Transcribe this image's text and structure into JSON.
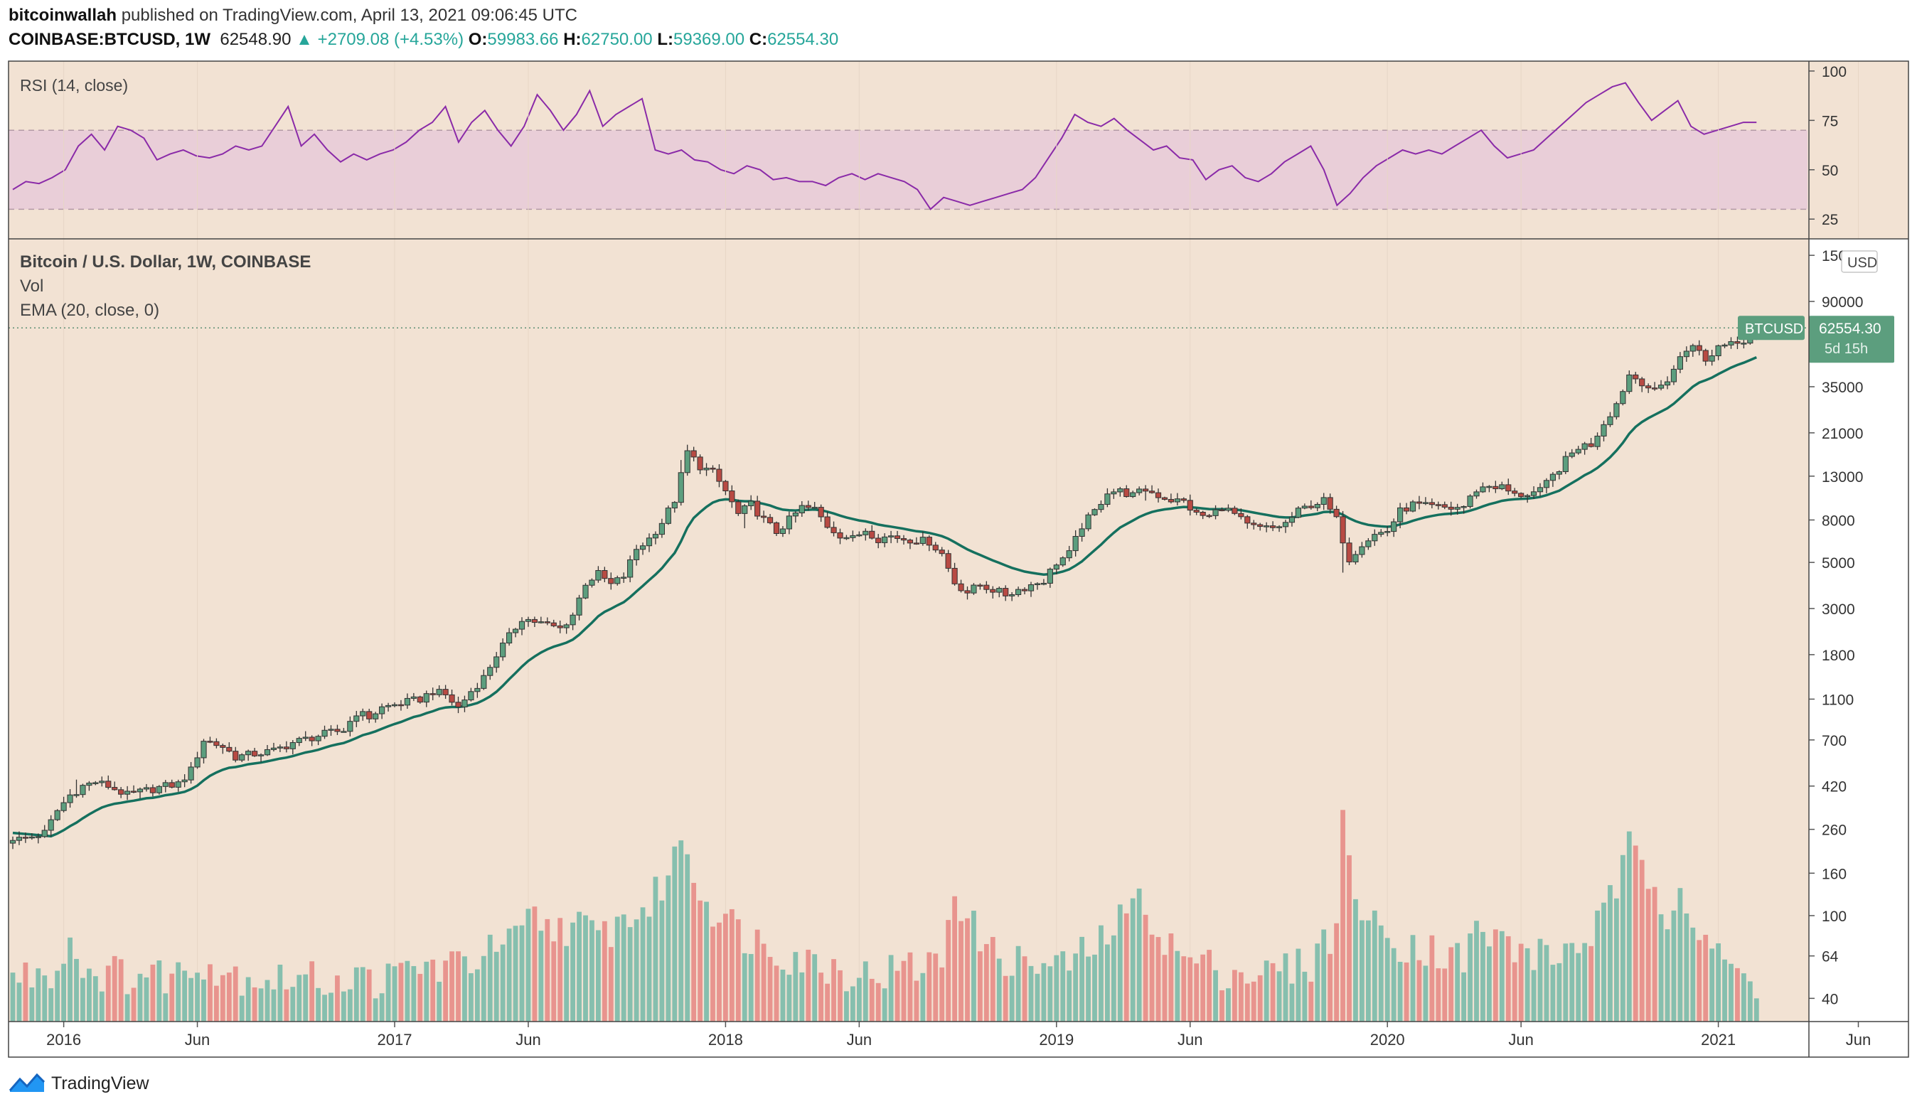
{
  "header": {
    "author": "bitcoinwallah",
    "published": "published on TradingView.com, April 13, 2021 09:06:45 UTC",
    "symbol": "COINBASE:BTCUSD, 1W",
    "last": "62548.90",
    "change": "+2709.08 (+4.53%)",
    "open_label": "O:",
    "open": "59983.66",
    "high_label": "H:",
    "high": "62750.00",
    "low_label": "L:",
    "low": "59369.00",
    "close_label": "C:",
    "close": "62554.30"
  },
  "colors": {
    "background": "#f2e2d3",
    "up": "#5c9e7e",
    "down": "#b84a43",
    "vol_up": "#86bfae",
    "vol_down": "#e8948e",
    "ema": "#15705e",
    "rsi_line": "#8a2aa8",
    "rsi_band": "#e8cad8",
    "label_bg": "#5c9e7e"
  },
  "footer": {
    "brand": "TradingView"
  },
  "chart_data": [
    {
      "type": "line",
      "title": "RSI (14, close)",
      "ylim": [
        15,
        105
      ],
      "yticks": [
        100,
        75,
        50,
        25
      ],
      "band": [
        30,
        70
      ],
      "series": [
        {
          "name": "RSI",
          "values": [
            40,
            44,
            43,
            46,
            50,
            62,
            68,
            60,
            72,
            70,
            66,
            55,
            58,
            60,
            57,
            56,
            58,
            62,
            60,
            62,
            72,
            82,
            62,
            68,
            60,
            54,
            58,
            55,
            58,
            60,
            64,
            70,
            74,
            82,
            64,
            74,
            80,
            70,
            62,
            72,
            88,
            80,
            70,
            78,
            90,
            72,
            78,
            82,
            86,
            60,
            58,
            60,
            55,
            54,
            50,
            48,
            52,
            50,
            45,
            46,
            44,
            44,
            42,
            46,
            48,
            45,
            48,
            46,
            44,
            40,
            30,
            36,
            34,
            32,
            34,
            36,
            38,
            40,
            46,
            56,
            66,
            78,
            74,
            72,
            76,
            70,
            65,
            60,
            62,
            56,
            55,
            45,
            50,
            52,
            46,
            44,
            48,
            54,
            58,
            62,
            50,
            32,
            38,
            46,
            52,
            56,
            60,
            58,
            60,
            58,
            62,
            66,
            70,
            62,
            56,
            58,
            60,
            66,
            72,
            78,
            84,
            88,
            92,
            94,
            84,
            75,
            80,
            85,
            72,
            68,
            70,
            72,
            74,
            74
          ]
        }
      ]
    },
    {
      "type": "candlestick",
      "title": "Bitcoin / U.S. Dollar, 1W, COINBASE",
      "legend": [
        "Vol",
        "EMA (20, close, 0)"
      ],
      "scale": "log",
      "currency": "USD",
      "yticks": [
        "150000",
        "90000",
        "35000",
        "21000",
        "13000",
        "8000",
        "5000",
        "3000",
        "1800",
        "1100",
        "700",
        "420",
        "260",
        "160",
        "100",
        "64",
        "40"
      ],
      "xticks": [
        {
          "label": "2016",
          "week": 8
        },
        {
          "label": "Jun",
          "week": 29
        },
        {
          "label": "2017",
          "week": 60
        },
        {
          "label": "Jun",
          "week": 81
        },
        {
          "label": "2018",
          "week": 112
        },
        {
          "label": "Jun",
          "week": 133
        },
        {
          "label": "2019",
          "week": 164
        },
        {
          "label": "Jun",
          "week": 185
        },
        {
          "label": "2020",
          "week": 216
        },
        {
          "label": "Jun",
          "week": 237
        },
        {
          "label": "2021",
          "week": 268
        },
        {
          "label": "Jun",
          "week": 290
        }
      ],
      "ema_start": 250,
      "last_price": {
        "symbol": "BTCUSD",
        "price": "62554.30",
        "countdown": "5d 15h"
      },
      "close_anchors": [
        [
          0,
          230
        ],
        [
          3,
          240
        ],
        [
          5,
          250
        ],
        [
          7,
          320
        ],
        [
          9,
          380
        ],
        [
          11,
          420
        ],
        [
          13,
          440
        ],
        [
          15,
          420
        ],
        [
          18,
          380
        ],
        [
          21,
          400
        ],
        [
          24,
          420
        ],
        [
          26,
          430
        ],
        [
          28,
          500
        ],
        [
          30,
          700
        ],
        [
          33,
          650
        ],
        [
          35,
          580
        ],
        [
          38,
          600
        ],
        [
          41,
          620
        ],
        [
          44,
          680
        ],
        [
          47,
          720
        ],
        [
          50,
          760
        ],
        [
          52,
          780
        ],
        [
          54,
          950
        ],
        [
          56,
          900
        ],
        [
          58,
          1000
        ],
        [
          61,
          1050
        ],
        [
          64,
          1100
        ],
        [
          66,
          1200
        ],
        [
          68,
          1150
        ],
        [
          70,
          1000
        ],
        [
          72,
          1200
        ],
        [
          74,
          1400
        ],
        [
          76,
          1800
        ],
        [
          78,
          2200
        ],
        [
          80,
          2700
        ],
        [
          82,
          2600
        ],
        [
          84,
          2500
        ],
        [
          86,
          2400
        ],
        [
          88,
          2800
        ],
        [
          90,
          4000
        ],
        [
          92,
          4400
        ],
        [
          94,
          3900
        ],
        [
          96,
          4300
        ],
        [
          98,
          5800
        ],
        [
          100,
          6500
        ],
        [
          102,
          7800
        ],
        [
          104,
          10000
        ],
        [
          106,
          17000
        ],
        [
          108,
          14500
        ],
        [
          110,
          13500
        ],
        [
          112,
          11000
        ],
        [
          114,
          8500
        ],
        [
          116,
          9500
        ],
        [
          118,
          8000
        ],
        [
          120,
          7000
        ],
        [
          122,
          8000
        ],
        [
          124,
          9200
        ],
        [
          126,
          9000
        ],
        [
          128,
          7500
        ],
        [
          130,
          6800
        ],
        [
          132,
          6500
        ],
        [
          134,
          7200
        ],
        [
          136,
          6500
        ],
        [
          138,
          6700
        ],
        [
          140,
          6500
        ],
        [
          142,
          6400
        ],
        [
          144,
          6300
        ],
        [
          146,
          5500
        ],
        [
          148,
          4000
        ],
        [
          150,
          3600
        ],
        [
          152,
          3900
        ],
        [
          154,
          3700
        ],
        [
          156,
          3500
        ],
        [
          158,
          3700
        ],
        [
          160,
          3900
        ],
        [
          162,
          4100
        ],
        [
          164,
          5000
        ],
        [
          166,
          5500
        ],
        [
          168,
          7500
        ],
        [
          170,
          8800
        ],
        [
          172,
          11000
        ],
        [
          174,
          11000
        ],
        [
          176,
          10500
        ],
        [
          178,
          11200
        ],
        [
          180,
          10500
        ],
        [
          182,
          10000
        ],
        [
          184,
          9800
        ],
        [
          186,
          8500
        ],
        [
          188,
          8300
        ],
        [
          190,
          9300
        ],
        [
          192,
          8500
        ],
        [
          194,
          7500
        ],
        [
          196,
          7300
        ],
        [
          198,
          7300
        ],
        [
          200,
          7700
        ],
        [
          202,
          8800
        ],
        [
          204,
          9500
        ],
        [
          206,
          9900
        ],
        [
          208,
          8000
        ],
        [
          210,
          5200
        ],
        [
          212,
          6200
        ],
        [
          214,
          6800
        ],
        [
          216,
          7100
        ],
        [
          218,
          8800
        ],
        [
          220,
          9500
        ],
        [
          222,
          9300
        ],
        [
          224,
          9200
        ],
        [
          226,
          9100
        ],
        [
          228,
          9300
        ],
        [
          230,
          11200
        ],
        [
          232,
          11700
        ],
        [
          234,
          11500
        ],
        [
          236,
          10500
        ],
        [
          238,
          10700
        ],
        [
          240,
          11000
        ],
        [
          242,
          13000
        ],
        [
          244,
          15500
        ],
        [
          246,
          18000
        ],
        [
          248,
          18500
        ],
        [
          250,
          23500
        ],
        [
          252,
          29000
        ],
        [
          254,
          40000
        ],
        [
          256,
          37000
        ],
        [
          258,
          33000
        ],
        [
          260,
          38000
        ],
        [
          262,
          48000
        ],
        [
          264,
          57000
        ],
        [
          266,
          46000
        ],
        [
          268,
          55000
        ],
        [
          270,
          58000
        ],
        [
          272,
          59000
        ],
        [
          274,
          62554
        ]
      ],
      "volume_profile": [
        [
          0,
          50
        ],
        [
          8,
          58
        ],
        [
          9,
          95
        ],
        [
          10,
          60
        ],
        [
          12,
          55
        ],
        [
          20,
          52
        ],
        [
          28,
          54
        ],
        [
          29,
          66
        ],
        [
          32,
          55
        ],
        [
          40,
          50
        ],
        [
          60,
          50
        ],
        [
          62,
          56
        ],
        [
          70,
          58
        ],
        [
          76,
          70
        ],
        [
          80,
          78
        ],
        [
          81,
          100
        ],
        [
          84,
          88
        ],
        [
          88,
          92
        ],
        [
          92,
          80
        ],
        [
          96,
          96
        ],
        [
          100,
          110
        ],
        [
          103,
          160
        ],
        [
          104,
          190
        ],
        [
          105,
          240
        ],
        [
          106,
          215
        ],
        [
          108,
          125
        ],
        [
          112,
          100
        ],
        [
          114,
          86
        ],
        [
          118,
          74
        ],
        [
          122,
          66
        ],
        [
          126,
          60
        ],
        [
          130,
          56
        ],
        [
          134,
          52
        ],
        [
          140,
          56
        ],
        [
          146,
          60
        ],
        [
          148,
          140
        ],
        [
          150,
          95
        ],
        [
          154,
          66
        ],
        [
          160,
          58
        ],
        [
          164,
          56
        ],
        [
          170,
          70
        ],
        [
          174,
          95
        ],
        [
          176,
          112
        ],
        [
          178,
          120
        ],
        [
          180,
          82
        ],
        [
          184,
          62
        ],
        [
          188,
          58
        ],
        [
          192,
          54
        ],
        [
          196,
          52
        ],
        [
          200,
          56
        ],
        [
          204,
          60
        ],
        [
          208,
          90
        ],
        [
          209,
          280
        ],
        [
          210,
          190
        ],
        [
          212,
          100
        ],
        [
          216,
          78
        ],
        [
          220,
          74
        ],
        [
          224,
          68
        ],
        [
          228,
          62
        ],
        [
          230,
          84
        ],
        [
          234,
          76
        ],
        [
          238,
          66
        ],
        [
          242,
          64
        ],
        [
          246,
          72
        ],
        [
          248,
          84
        ],
        [
          250,
          98
        ],
        [
          252,
          140
        ],
        [
          254,
          210
        ],
        [
          256,
          170
        ],
        [
          258,
          140
        ],
        [
          260,
          110
        ],
        [
          262,
          150
        ],
        [
          264,
          92
        ],
        [
          266,
          78
        ],
        [
          268,
          62
        ],
        [
          270,
          56
        ],
        [
          273,
          46
        ],
        [
          274,
          42
        ]
      ]
    }
  ]
}
